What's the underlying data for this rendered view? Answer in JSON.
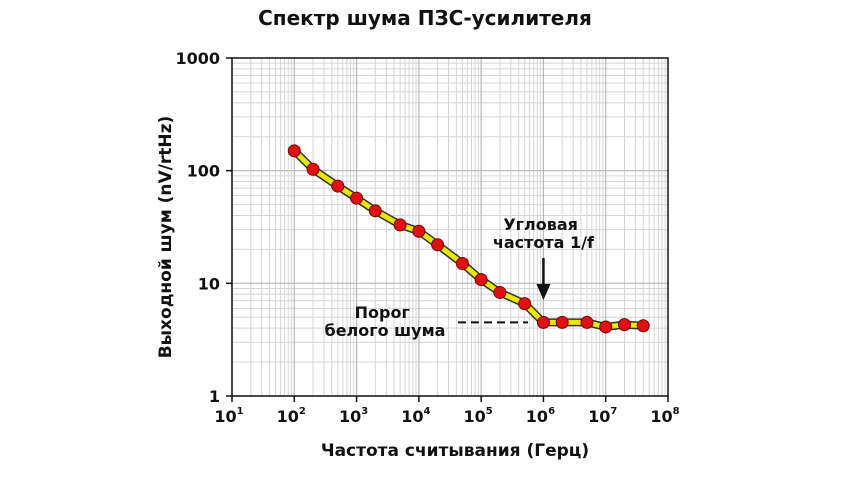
{
  "chart_data": {
    "type": "line",
    "title": "Спектр шума ПЗС-усилителя",
    "xlabel": "Частота считывания (Герц)",
    "ylabel": "Выходной шум (nV/rtHz)",
    "xscale": "log",
    "yscale": "log",
    "xlim": [
      10,
      100000000
    ],
    "ylim": [
      1,
      1000
    ],
    "grid": true,
    "x_ticks": [
      {
        "base": "10",
        "exp": "1"
      },
      {
        "base": "10",
        "exp": "2"
      },
      {
        "base": "10",
        "exp": "3"
      },
      {
        "base": "10",
        "exp": "4"
      },
      {
        "base": "10",
        "exp": "5"
      },
      {
        "base": "10",
        "exp": "6"
      },
      {
        "base": "10",
        "exp": "7"
      },
      {
        "base": "10",
        "exp": "8"
      }
    ],
    "y_ticks": [
      "1",
      "10",
      "100",
      "1000"
    ],
    "series": [
      {
        "line_color": "#e8e800",
        "marker_color": "#e01010",
        "x": [
          100,
          200,
          500,
          1000,
          2000,
          5000,
          10000,
          20000,
          50000,
          100000,
          200000,
          500000,
          1000000,
          2000000,
          5000000,
          10000000,
          20000000,
          40000000
        ],
        "y": [
          150,
          103,
          73,
          57,
          44,
          33,
          29,
          22,
          15,
          10.8,
          8.3,
          6.6,
          4.5,
          4.5,
          4.5,
          4.1,
          4.3,
          4.2
        ]
      }
    ],
    "annotations": [
      {
        "id": "corner",
        "lines": [
          "Угловая",
          "частота 1/f"
        ],
        "x": 1000000
      },
      {
        "id": "floor",
        "lines": [
          "Порог",
          "белого шума"
        ],
        "y": 4.5
      }
    ]
  }
}
